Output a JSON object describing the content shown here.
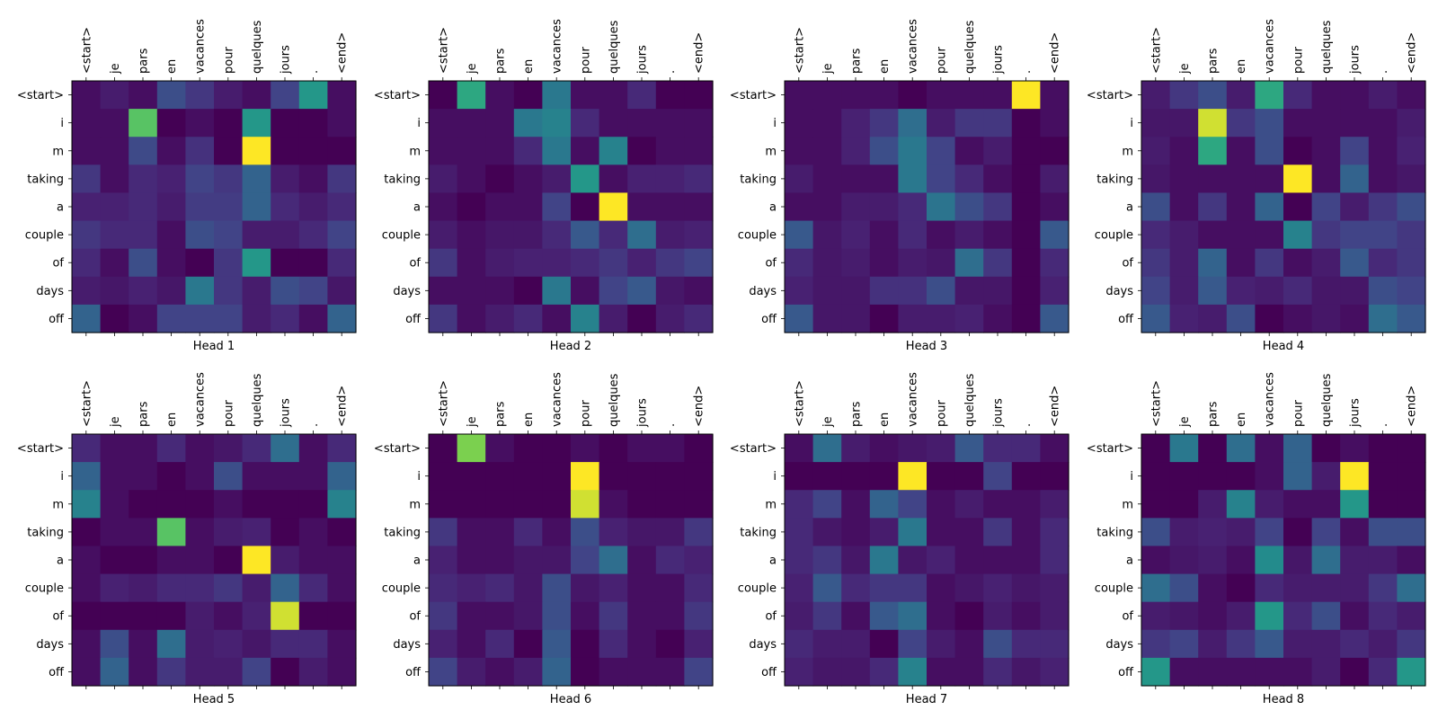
{
  "chart_data": {
    "type": "heatmap",
    "colormap": "viridis",
    "value_range": [
      0,
      1
    ],
    "grid": false,
    "x_tokens": [
      "<start>",
      "je",
      "pars",
      "en",
      "vacances",
      "pour",
      "quelques",
      "jours",
      ".",
      "<end>"
    ],
    "y_tokens": [
      "<start>",
      "i",
      "m",
      "taking",
      "a",
      "couple",
      "of",
      "days",
      "off"
    ],
    "panels": [
      {
        "title": "Head 1",
        "values": [
          [
            0.05,
            0.1,
            0.05,
            0.3,
            0.2,
            0.1,
            0.05,
            0.25,
            0.65,
            0.05
          ],
          [
            0.05,
            0.05,
            0.8,
            0.0,
            0.05,
            0.0,
            0.65,
            0.0,
            0.0,
            0.05
          ],
          [
            0.05,
            0.05,
            0.28,
            0.05,
            0.18,
            0.0,
            1.0,
            0.0,
            0.0,
            0.0
          ],
          [
            0.2,
            0.05,
            0.15,
            0.12,
            0.25,
            0.2,
            0.4,
            0.1,
            0.05,
            0.2
          ],
          [
            0.12,
            0.12,
            0.15,
            0.1,
            0.22,
            0.22,
            0.4,
            0.15,
            0.1,
            0.15
          ],
          [
            0.2,
            0.15,
            0.15,
            0.05,
            0.3,
            0.25,
            0.1,
            0.1,
            0.15,
            0.25
          ],
          [
            0.15,
            0.05,
            0.3,
            0.05,
            0.0,
            0.2,
            0.65,
            0.0,
            0.0,
            0.15
          ],
          [
            0.1,
            0.08,
            0.12,
            0.08,
            0.5,
            0.2,
            0.1,
            0.3,
            0.25,
            0.08
          ],
          [
            0.4,
            0.0,
            0.05,
            0.25,
            0.25,
            0.25,
            0.1,
            0.15,
            0.05,
            0.4
          ]
        ]
      },
      {
        "title": "Head 2",
        "values": [
          [
            0.0,
            0.7,
            0.05,
            0.0,
            0.5,
            0.05,
            0.05,
            0.15,
            0.0,
            0.0
          ],
          [
            0.05,
            0.05,
            0.05,
            0.5,
            0.55,
            0.15,
            0.05,
            0.05,
            0.05,
            0.05
          ],
          [
            0.05,
            0.05,
            0.05,
            0.15,
            0.5,
            0.05,
            0.55,
            0.0,
            0.05,
            0.05
          ],
          [
            0.1,
            0.05,
            0.0,
            0.05,
            0.1,
            0.65,
            0.05,
            0.12,
            0.12,
            0.15
          ],
          [
            0.05,
            0.0,
            0.05,
            0.05,
            0.25,
            0.0,
            1.0,
            0.05,
            0.05,
            0.05
          ],
          [
            0.1,
            0.05,
            0.08,
            0.08,
            0.15,
            0.35,
            0.15,
            0.45,
            0.1,
            0.12
          ],
          [
            0.2,
            0.05,
            0.1,
            0.12,
            0.12,
            0.15,
            0.2,
            0.12,
            0.2,
            0.25
          ],
          [
            0.05,
            0.05,
            0.05,
            0.0,
            0.5,
            0.05,
            0.25,
            0.35,
            0.08,
            0.05
          ],
          [
            0.2,
            0.05,
            0.1,
            0.15,
            0.05,
            0.55,
            0.1,
            0.0,
            0.1,
            0.15
          ]
        ]
      },
      {
        "title": "Head 3",
        "values": [
          [
            0.05,
            0.05,
            0.05,
            0.05,
            0.0,
            0.05,
            0.05,
            0.05,
            1.0,
            0.05
          ],
          [
            0.05,
            0.05,
            0.12,
            0.2,
            0.45,
            0.1,
            0.2,
            0.2,
            0.0,
            0.05
          ],
          [
            0.05,
            0.05,
            0.12,
            0.3,
            0.5,
            0.25,
            0.05,
            0.1,
            0.0,
            0.0
          ],
          [
            0.1,
            0.05,
            0.05,
            0.05,
            0.5,
            0.25,
            0.15,
            0.05,
            0.0,
            0.1
          ],
          [
            0.05,
            0.05,
            0.1,
            0.1,
            0.15,
            0.48,
            0.3,
            0.2,
            0.0,
            0.05
          ],
          [
            0.35,
            0.08,
            0.12,
            0.05,
            0.15,
            0.05,
            0.1,
            0.05,
            0.0,
            0.35
          ],
          [
            0.15,
            0.08,
            0.1,
            0.05,
            0.1,
            0.08,
            0.45,
            0.2,
            0.0,
            0.15
          ],
          [
            0.12,
            0.08,
            0.08,
            0.18,
            0.18,
            0.3,
            0.08,
            0.08,
            0.0,
            0.12
          ],
          [
            0.35,
            0.08,
            0.08,
            0.0,
            0.1,
            0.1,
            0.12,
            0.05,
            0.0,
            0.35
          ]
        ]
      },
      {
        "title": "Head 4",
        "values": [
          [
            0.1,
            0.2,
            0.3,
            0.1,
            0.7,
            0.15,
            0.05,
            0.05,
            0.1,
            0.05
          ],
          [
            0.08,
            0.08,
            0.95,
            0.2,
            0.3,
            0.05,
            0.05,
            0.05,
            0.05,
            0.1
          ],
          [
            0.1,
            0.05,
            0.7,
            0.05,
            0.3,
            0.0,
            0.05,
            0.25,
            0.05,
            0.12
          ],
          [
            0.08,
            0.05,
            0.05,
            0.05,
            0.05,
            1.0,
            0.05,
            0.4,
            0.05,
            0.08
          ],
          [
            0.3,
            0.05,
            0.2,
            0.05,
            0.4,
            0.0,
            0.25,
            0.1,
            0.2,
            0.3
          ],
          [
            0.15,
            0.1,
            0.05,
            0.05,
            0.05,
            0.55,
            0.2,
            0.25,
            0.25,
            0.2
          ],
          [
            0.2,
            0.1,
            0.4,
            0.05,
            0.2,
            0.05,
            0.1,
            0.35,
            0.15,
            0.2
          ],
          [
            0.25,
            0.1,
            0.35,
            0.12,
            0.1,
            0.15,
            0.08,
            0.08,
            0.3,
            0.25
          ],
          [
            0.35,
            0.12,
            0.1,
            0.3,
            0.0,
            0.05,
            0.08,
            0.05,
            0.45,
            0.35
          ]
        ]
      },
      {
        "title": "Head 5",
        "values": [
          [
            0.15,
            0.05,
            0.05,
            0.15,
            0.05,
            0.08,
            0.15,
            0.45,
            0.05,
            0.15
          ],
          [
            0.4,
            0.05,
            0.05,
            0.0,
            0.05,
            0.3,
            0.05,
            0.05,
            0.05,
            0.4
          ],
          [
            0.55,
            0.05,
            0.0,
            0.0,
            0.0,
            0.05,
            0.0,
            0.0,
            0.0,
            0.55
          ],
          [
            0.0,
            0.05,
            0.05,
            0.8,
            0.05,
            0.1,
            0.12,
            0.0,
            0.05,
            0.0
          ],
          [
            0.05,
            0.0,
            0.0,
            0.05,
            0.05,
            0.0,
            1.0,
            0.1,
            0.05,
            0.05
          ],
          [
            0.05,
            0.12,
            0.1,
            0.15,
            0.15,
            0.2,
            0.1,
            0.4,
            0.15,
            0.05
          ],
          [
            0.0,
            0.0,
            0.0,
            0.0,
            0.1,
            0.05,
            0.12,
            0.95,
            0.0,
            0.0
          ],
          [
            0.05,
            0.3,
            0.05,
            0.45,
            0.1,
            0.12,
            0.08,
            0.15,
            0.15,
            0.05
          ],
          [
            0.05,
            0.4,
            0.05,
            0.2,
            0.1,
            0.1,
            0.25,
            0.0,
            0.1,
            0.05
          ]
        ]
      },
      {
        "title": "Head 6",
        "values": [
          [
            0.0,
            0.85,
            0.05,
            0.0,
            0.0,
            0.05,
            0.0,
            0.05,
            0.05,
            0.0
          ],
          [
            0.0,
            0.0,
            0.0,
            0.0,
            0.0,
            1.0,
            0.0,
            0.0,
            0.0,
            0.0
          ],
          [
            0.0,
            0.0,
            0.0,
            0.0,
            0.0,
            0.95,
            0.05,
            0.0,
            0.0,
            0.0
          ],
          [
            0.2,
            0.05,
            0.05,
            0.15,
            0.05,
            0.3,
            0.12,
            0.08,
            0.08,
            0.2
          ],
          [
            0.12,
            0.05,
            0.05,
            0.08,
            0.08,
            0.25,
            0.45,
            0.05,
            0.15,
            0.12
          ],
          [
            0.15,
            0.12,
            0.15,
            0.08,
            0.3,
            0.08,
            0.12,
            0.05,
            0.05,
            0.15
          ],
          [
            0.2,
            0.05,
            0.05,
            0.08,
            0.3,
            0.05,
            0.2,
            0.05,
            0.05,
            0.2
          ],
          [
            0.12,
            0.05,
            0.15,
            0.0,
            0.35,
            0.0,
            0.15,
            0.05,
            0.0,
            0.12
          ],
          [
            0.25,
            0.1,
            0.05,
            0.1,
            0.4,
            0.0,
            0.05,
            0.05,
            0.05,
            0.25
          ]
        ]
      },
      {
        "title": "Head 7",
        "values": [
          [
            0.05,
            0.45,
            0.1,
            0.05,
            0.08,
            0.1,
            0.35,
            0.15,
            0.15,
            0.05
          ],
          [
            0.0,
            0.0,
            0.0,
            0.0,
            1.0,
            0.0,
            0.0,
            0.25,
            0.0,
            0.0
          ],
          [
            0.15,
            0.25,
            0.05,
            0.4,
            0.25,
            0.05,
            0.1,
            0.05,
            0.05,
            0.1
          ],
          [
            0.15,
            0.08,
            0.05,
            0.1,
            0.5,
            0.05,
            0.05,
            0.2,
            0.05,
            0.15
          ],
          [
            0.15,
            0.2,
            0.08,
            0.5,
            0.08,
            0.12,
            0.05,
            0.05,
            0.05,
            0.15
          ],
          [
            0.12,
            0.35,
            0.15,
            0.2,
            0.2,
            0.05,
            0.08,
            0.12,
            0.08,
            0.1
          ],
          [
            0.1,
            0.2,
            0.05,
            0.35,
            0.45,
            0.05,
            0.0,
            0.1,
            0.05,
            0.1
          ],
          [
            0.15,
            0.1,
            0.1,
            0.0,
            0.25,
            0.1,
            0.05,
            0.3,
            0.15,
            0.15
          ],
          [
            0.12,
            0.08,
            0.08,
            0.15,
            0.55,
            0.05,
            0.05,
            0.15,
            0.08,
            0.12
          ]
        ]
      },
      {
        "title": "Head 8",
        "values": [
          [
            0.0,
            0.5,
            0.0,
            0.45,
            0.05,
            0.4,
            0.0,
            0.05,
            0.0,
            0.0
          ],
          [
            0.0,
            0.0,
            0.0,
            0.0,
            0.05,
            0.4,
            0.1,
            1.0,
            0.0,
            0.0
          ],
          [
            0.0,
            0.0,
            0.1,
            0.55,
            0.1,
            0.05,
            0.05,
            0.65,
            0.0,
            0.0
          ],
          [
            0.3,
            0.1,
            0.12,
            0.1,
            0.25,
            0.0,
            0.25,
            0.05,
            0.3,
            0.3
          ],
          [
            0.05,
            0.08,
            0.1,
            0.05,
            0.6,
            0.08,
            0.45,
            0.1,
            0.1,
            0.05
          ],
          [
            0.45,
            0.3,
            0.05,
            0.0,
            0.15,
            0.1,
            0.1,
            0.1,
            0.2,
            0.45
          ],
          [
            0.1,
            0.08,
            0.05,
            0.1,
            0.65,
            0.15,
            0.3,
            0.05,
            0.15,
            0.1
          ],
          [
            0.2,
            0.25,
            0.1,
            0.2,
            0.35,
            0.1,
            0.1,
            0.15,
            0.1,
            0.2
          ],
          [
            0.65,
            0.05,
            0.05,
            0.05,
            0.05,
            0.05,
            0.1,
            0.0,
            0.15,
            0.65
          ]
        ]
      }
    ]
  }
}
